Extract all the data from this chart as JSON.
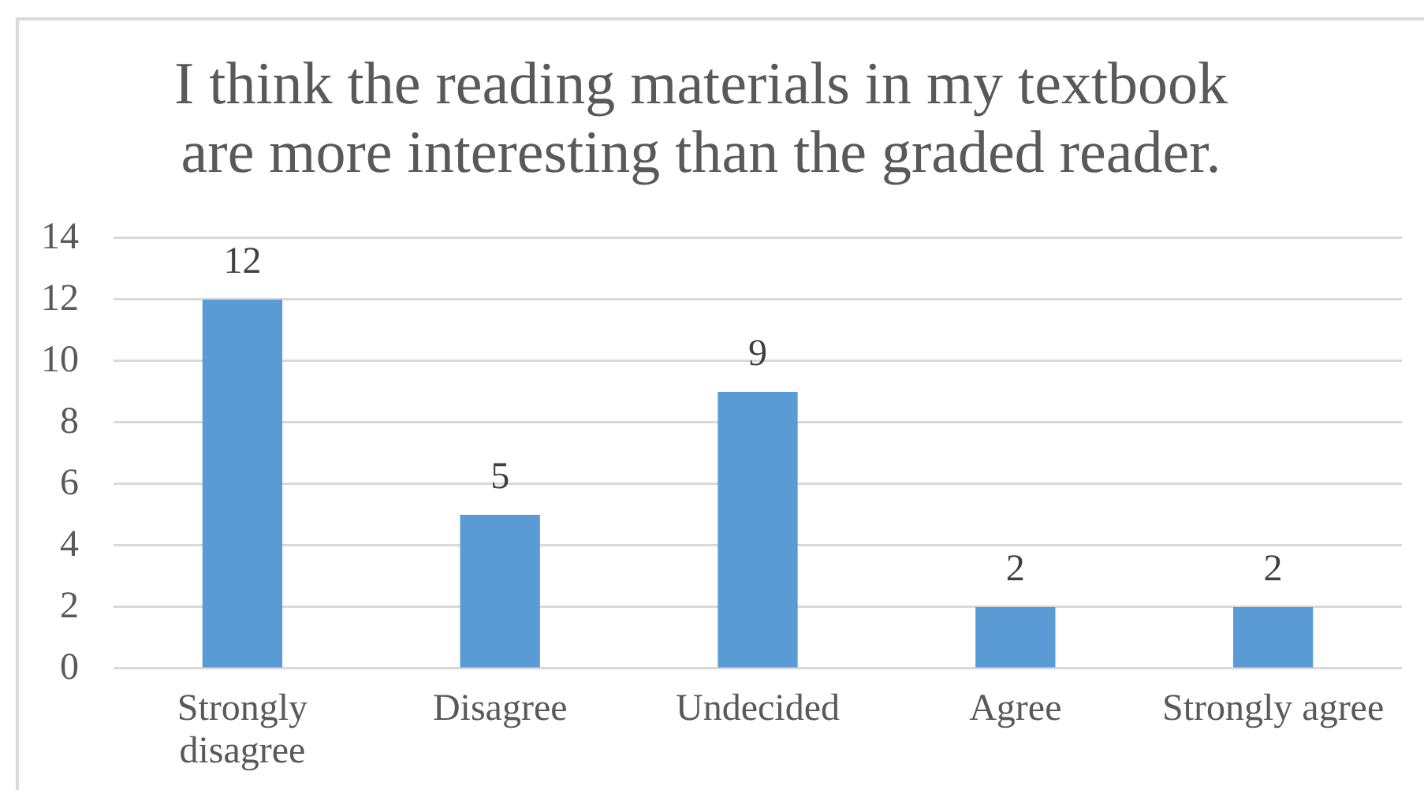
{
  "chart_data": {
    "type": "bar",
    "title": "I think the reading materials in my textbook are more interesting than the graded reader.",
    "categories": [
      "Strongly disagree",
      "Disagree",
      "Undecided",
      "Agree",
      "Strongly agree"
    ],
    "values": [
      12,
      5,
      9,
      2,
      2
    ],
    "color": "#5b9bd5",
    "ylim": [
      0,
      14
    ],
    "yticks": [
      0,
      2,
      4,
      6,
      8,
      10,
      12,
      14
    ],
    "grid": "y",
    "data_labels": true
  }
}
